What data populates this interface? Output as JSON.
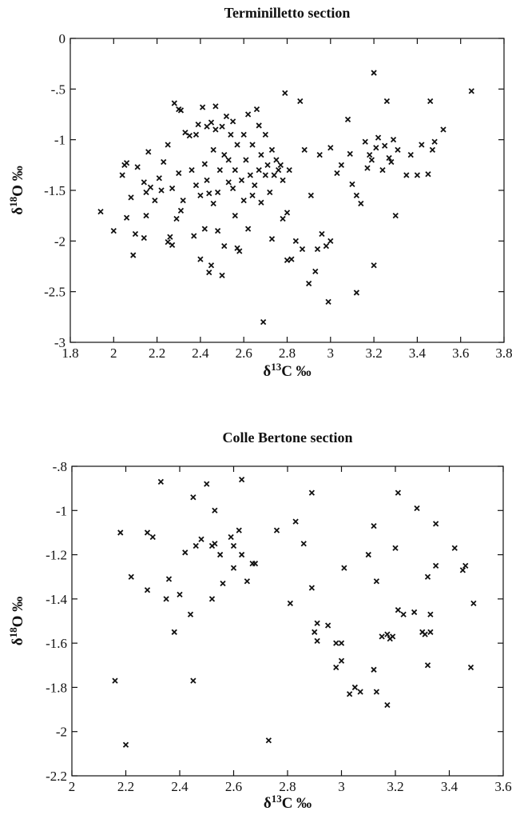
{
  "chart_data": [
    {
      "type": "scatter",
      "title": "Terminilletto section",
      "x_label": [
        "δ",
        "13",
        "C ‰"
      ],
      "y_label": [
        "δ",
        "18",
        "O ‰"
      ],
      "xlim": [
        1.8,
        3.8
      ],
      "ylim": [
        -3,
        0
      ],
      "xticks": [
        1.8,
        2,
        2.2,
        2.4,
        2.6,
        2.8,
        3,
        3.2,
        3.4,
        3.6,
        3.8
      ],
      "yticks": [
        -3,
        {
          "value": -2.5,
          "label": "-2.5"
        },
        -2,
        -1.5,
        -1,
        {
          "value": -0.5,
          "label": "-.5"
        },
        0
      ],
      "color": "#111111",
      "x": [
        1.94,
        2.0,
        2.04,
        2.05,
        2.06,
        2.06,
        2.08,
        2.09,
        2.1,
        2.11,
        2.14,
        2.14,
        2.15,
        2.15,
        2.16,
        2.17,
        2.19,
        2.21,
        2.22,
        2.23,
        2.25,
        2.25,
        2.26,
        2.27,
        2.27,
        2.28,
        2.29,
        2.3,
        2.3,
        2.31,
        2.31,
        2.32,
        2.33,
        2.35,
        2.36,
        2.37,
        2.38,
        2.38,
        2.39,
        2.4,
        2.4,
        2.41,
        2.42,
        2.42,
        2.43,
        2.43,
        2.44,
        2.44,
        2.45,
        2.45,
        2.46,
        2.46,
        2.47,
        2.47,
        2.48,
        2.48,
        2.49,
        2.5,
        2.5,
        2.51,
        2.51,
        2.52,
        2.53,
        2.53,
        2.54,
        2.55,
        2.55,
        2.56,
        2.56,
        2.57,
        2.57,
        2.58,
        2.59,
        2.6,
        2.6,
        2.61,
        2.62,
        2.62,
        2.63,
        2.64,
        2.64,
        2.65,
        2.66,
        2.67,
        2.67,
        2.68,
        2.68,
        2.69,
        2.7,
        2.7,
        2.71,
        2.72,
        2.73,
        2.73,
        2.74,
        2.75,
        2.76,
        2.77,
        2.78,
        2.78,
        2.79,
        2.8,
        2.8,
        2.81,
        2.82,
        2.84,
        2.86,
        2.87,
        2.88,
        2.9,
        2.91,
        2.93,
        2.94,
        2.95,
        2.96,
        2.98,
        2.99,
        3.0,
        3.0,
        3.03,
        3.05,
        3.08,
        3.09,
        3.1,
        3.12,
        3.12,
        3.14,
        3.16,
        3.17,
        3.18,
        3.19,
        3.2,
        3.2,
        3.21,
        3.22,
        3.24,
        3.25,
        3.26,
        3.27,
        3.28,
        3.29,
        3.3,
        3.31,
        3.35,
        3.37,
        3.4,
        3.42,
        3.45,
        3.46,
        3.47,
        3.48,
        3.52,
        3.65
      ],
      "values": [
        -1.71,
        -1.9,
        -1.35,
        -1.25,
        -1.23,
        -1.77,
        -1.57,
        -2.14,
        -1.93,
        -1.27,
        -1.42,
        -1.97,
        -1.75,
        -1.52,
        -1.12,
        -1.47,
        -1.6,
        -1.38,
        -1.5,
        -1.22,
        -1.05,
        -2.01,
        -1.96,
        -2.04,
        -1.48,
        -0.64,
        -1.78,
        -1.33,
        -0.7,
        -1.7,
        -0.71,
        -1.6,
        -0.93,
        -0.96,
        -1.3,
        -1.95,
        -1.45,
        -0.95,
        -0.85,
        -2.18,
        -1.55,
        -0.68,
        -1.88,
        -1.24,
        -0.87,
        -1.4,
        -2.31,
        -1.53,
        -0.83,
        -2.24,
        -1.1,
        -1.63,
        -0.9,
        -0.67,
        -1.52,
        -1.9,
        -1.3,
        -2.34,
        -0.87,
        -1.15,
        -2.05,
        -0.77,
        -1.42,
        -1.2,
        -0.95,
        -1.48,
        -0.82,
        -1.75,
        -1.3,
        -1.05,
        -2.07,
        -2.1,
        -1.4,
        -0.95,
        -1.6,
        -1.2,
        -0.75,
        -1.88,
        -1.35,
        -1.55,
        -1.05,
        -1.45,
        -0.7,
        -1.3,
        -0.86,
        -1.15,
        -1.62,
        -2.8,
        -1.35,
        -0.95,
        -1.25,
        -1.52,
        -1.1,
        -1.98,
        -1.35,
        -1.2,
        -1.3,
        -1.25,
        -1.4,
        -1.78,
        -0.54,
        -2.19,
        -1.72,
        -1.3,
        -2.18,
        -2.0,
        -0.62,
        -2.08,
        -1.1,
        -2.42,
        -1.55,
        -2.3,
        -2.08,
        -1.15,
        -1.93,
        -2.05,
        -2.6,
        -2.0,
        -1.08,
        -1.33,
        -1.25,
        -0.8,
        -1.14,
        -1.44,
        -1.55,
        -2.51,
        -1.63,
        -1.02,
        -1.28,
        -1.15,
        -1.2,
        -2.24,
        -0.34,
        -1.08,
        -0.98,
        -1.3,
        -1.06,
        -0.62,
        -1.18,
        -1.22,
        -1.0,
        -1.75,
        -1.1,
        -1.35,
        -1.15,
        -1.35,
        -1.05,
        -1.34,
        -0.62,
        -1.1,
        -1.02,
        -0.9,
        -0.52
      ]
    },
    {
      "type": "scatter",
      "title": "Colle Bertone section",
      "x_label": [
        "δ",
        "13",
        "C ‰"
      ],
      "y_label": [
        "δ",
        "18",
        "O ‰"
      ],
      "xlim": [
        2,
        3.6
      ],
      "ylim": [
        -2.2,
        -0.8
      ],
      "xticks": [
        2,
        2.2,
        2.4,
        2.6,
        2.8,
        3,
        3.2,
        3.4,
        3.6
      ],
      "yticks": [
        -2.2,
        -2,
        -1.8,
        -1.6,
        -1.4,
        -1.2,
        -1,
        {
          "value": -0.8,
          "label": "-.8"
        }
      ],
      "color": "#111111",
      "x": [
        2.16,
        2.18,
        2.2,
        2.22,
        2.28,
        2.28,
        2.3,
        2.33,
        2.35,
        2.36,
        2.38,
        2.4,
        2.42,
        2.44,
        2.45,
        2.45,
        2.46,
        2.48,
        2.5,
        2.52,
        2.52,
        2.53,
        2.53,
        2.55,
        2.56,
        2.59,
        2.6,
        2.6,
        2.62,
        2.63,
        2.63,
        2.65,
        2.67,
        2.68,
        2.73,
        2.76,
        2.81,
        2.83,
        2.86,
        2.89,
        2.89,
        2.9,
        2.91,
        2.91,
        2.95,
        2.98,
        2.98,
        3.0,
        3.0,
        3.01,
        3.03,
        3.05,
        3.07,
        3.1,
        3.12,
        3.12,
        3.13,
        3.13,
        3.15,
        3.17,
        3.17,
        3.18,
        3.19,
        3.2,
        3.21,
        3.21,
        3.23,
        3.27,
        3.28,
        3.3,
        3.31,
        3.32,
        3.32,
        3.33,
        3.33,
        3.35,
        3.35,
        3.42,
        3.45,
        3.46,
        3.48,
        3.49
      ],
      "values": [
        -1.77,
        -1.1,
        -2.06,
        -1.3,
        -1.36,
        -1.1,
        -1.12,
        -0.87,
        -1.4,
        -1.31,
        -1.55,
        -1.38,
        -1.19,
        -1.47,
        -0.94,
        -1.77,
        -1.16,
        -1.13,
        -0.88,
        -1.16,
        -1.4,
        -1.0,
        -1.15,
        -1.2,
        -1.33,
        -1.12,
        -1.26,
        -1.16,
        -1.09,
        -0.86,
        -1.2,
        -1.32,
        -1.24,
        -1.24,
        -2.04,
        -1.09,
        -1.42,
        -1.05,
        -1.15,
        -0.92,
        -1.35,
        -1.55,
        -1.51,
        -1.59,
        -1.52,
        -1.71,
        -1.6,
        -1.68,
        -1.6,
        -1.26,
        -1.83,
        -1.8,
        -1.82,
        -1.2,
        -1.07,
        -1.72,
        -1.82,
        -1.32,
        -1.57,
        -1.88,
        -1.56,
        -1.58,
        -1.57,
        -1.17,
        -0.92,
        -1.45,
        -1.47,
        -1.46,
        -0.99,
        -1.55,
        -1.56,
        -1.3,
        -1.7,
        -1.55,
        -1.47,
        -1.06,
        -1.25,
        -1.17,
        -1.27,
        -1.25,
        -1.71,
        -1.42
      ]
    }
  ]
}
